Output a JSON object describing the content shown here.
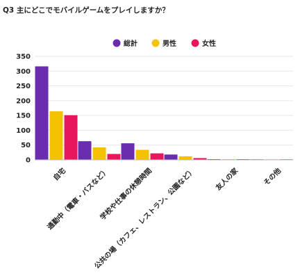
{
  "chart_data": {
    "type": "bar",
    "title": "Q3 主にどこでモバイルゲームをプレイしますか？",
    "categories": [
      "自宅",
      "通勤中（電車・バスなど）",
      "学校や仕事の休憩時間",
      "公共の場（カフェ、レストラン、公園など）",
      "友人の家",
      "その他"
    ],
    "series": [
      {
        "name": "総計",
        "color": "#6a2db0",
        "values": [
          316,
          63,
          56,
          18,
          2,
          0
        ]
      },
      {
        "name": "男性",
        "color": "#f5c200",
        "values": [
          164,
          42,
          34,
          12,
          1,
          0
        ]
      },
      {
        "name": "女性",
        "color": "#e8175d",
        "values": [
          151,
          20,
          22,
          6,
          1,
          0
        ]
      }
    ],
    "ylim": [
      0,
      350
    ],
    "yticks": [
      0,
      50,
      100,
      150,
      200,
      250,
      300,
      350
    ],
    "legend_position": "top-center",
    "grid": true
  }
}
